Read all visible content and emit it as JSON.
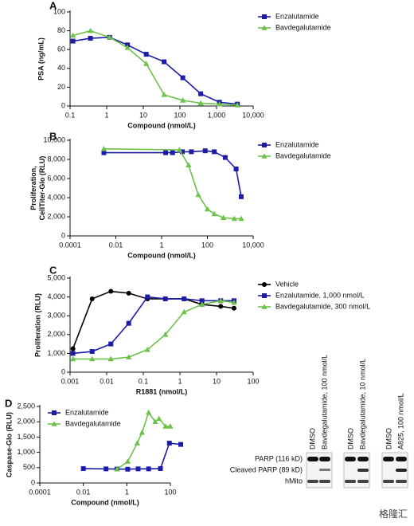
{
  "chart_data": [
    {
      "type": "line",
      "panel_label": "A",
      "xlabel": "Compound (nmol/L)",
      "ylabel": [
        "PSA (ng/mL)"
      ],
      "xscale": "log",
      "xlim": [
        0.1,
        10000
      ],
      "xticks": [
        0.1,
        1,
        10,
        100,
        {
          "value": 1000,
          "label": "1,000"
        },
        {
          "value": 10000,
          "label": "10,000"
        }
      ],
      "ylim": [
        0,
        100
      ],
      "yticks": [
        0,
        20,
        40,
        60,
        80,
        100
      ],
      "legend": "upper right",
      "series": [
        {
          "name": "Enzalutamide",
          "color": "#1c1ca8",
          "marker": "square",
          "x": [
            0.12,
            0.36,
            1.2,
            3.7,
            12,
            37,
            120,
            370,
            1200,
            3700
          ],
          "values": [
            69,
            72,
            73,
            65,
            55,
            47,
            30,
            13,
            4,
            2
          ]
        },
        {
          "name": "Bavdegalutamide",
          "color": "#6cc24a",
          "marker": "triangle",
          "x": [
            0.12,
            0.36,
            1.2,
            3.7,
            12,
            37,
            120,
            370,
            1200,
            3700
          ],
          "values": [
            75,
            80,
            73,
            62,
            45,
            12,
            6,
            3,
            2,
            1
          ]
        }
      ]
    },
    {
      "type": "line",
      "panel_label": "B",
      "xlabel": "Compound (nmol/L)",
      "ylabel": [
        "Proliferation,",
        "CellTiter-Glo (RLU)"
      ],
      "xscale": "log",
      "xlim": [
        0.0001,
        10000
      ],
      "xticks": [
        0.0001,
        0.01,
        1,
        100,
        {
          "value": 10000,
          "label": "10,000"
        }
      ],
      "ylim": [
        0,
        10000
      ],
      "yticks": [
        0,
        {
          "value": 2000,
          "label": "2,000"
        },
        {
          "value": 4000,
          "label": "4,000"
        },
        {
          "value": 6000,
          "label": "6,000"
        },
        {
          "value": 8000,
          "label": "8,000"
        },
        {
          "value": 10000,
          "label": "10,000"
        }
      ],
      "legend": "upper right",
      "series": [
        {
          "name": "Enzalutamide",
          "color": "#1c1ca8",
          "marker": "square",
          "x": [
            0.003,
            1.5,
            3,
            8,
            20,
            80,
            200,
            600,
            1800,
            3000
          ],
          "values": [
            8700,
            8700,
            8700,
            8800,
            8800,
            8900,
            8800,
            8200,
            7000,
            4100
          ]
        },
        {
          "name": "Bavdegalutamide",
          "color": "#6cc24a",
          "marker": "triangle",
          "x": [
            0.003,
            6,
            15,
            40,
            100,
            200,
            500,
            1500,
            3000
          ],
          "values": [
            9100,
            9000,
            7400,
            4300,
            2800,
            2300,
            1900,
            1800,
            1800
          ]
        }
      ]
    },
    {
      "type": "line",
      "panel_label": "C",
      "xlabel": "R1881 (nmol/L)",
      "ylabel": [
        "Proliferation (RLU)"
      ],
      "xscale": "log",
      "xlim": [
        0.001,
        100
      ],
      "xticks": [
        0.001,
        0.01,
        0.1,
        1,
        10,
        100
      ],
      "ylim": [
        0,
        5000
      ],
      "yticks": [
        0,
        {
          "value": 1000,
          "label": "1,000"
        },
        {
          "value": 2000,
          "label": "2,000"
        },
        {
          "value": 3000,
          "label": "3,000"
        },
        {
          "value": 4000,
          "label": "4,000"
        },
        {
          "value": 5000,
          "label": "5,000"
        }
      ],
      "legend": "right",
      "series": [
        {
          "name": "Vehicle",
          "color": "#000000",
          "marker": "circle",
          "x": [
            0.0012,
            0.004,
            0.013,
            0.04,
            0.13,
            0.4,
            1.3,
            4,
            13,
            30
          ],
          "values": [
            1250,
            3900,
            4300,
            4200,
            3900,
            3900,
            3900,
            3600,
            3500,
            3400
          ]
        },
        {
          "name": "Enzalutamide, 1,000 nmol/L",
          "color": "#1c1ca8",
          "marker": "square",
          "x": [
            0.0012,
            0.004,
            0.013,
            0.04,
            0.13,
            0.4,
            1.3,
            4,
            13,
            30
          ],
          "values": [
            1000,
            1100,
            1500,
            2600,
            4000,
            3900,
            3900,
            3800,
            3800,
            3800
          ]
        },
        {
          "name": "Bavdegalutamide, 300 nmol/L",
          "color": "#6cc24a",
          "marker": "triangle",
          "x": [
            0.0012,
            0.004,
            0.013,
            0.04,
            0.13,
            0.4,
            1.3,
            4,
            13,
            30
          ],
          "values": [
            700,
            700,
            700,
            800,
            1200,
            2000,
            3200,
            3600,
            3800,
            3700
          ]
        }
      ]
    },
    {
      "type": "line",
      "panel_label": "D",
      "xlabel": "Compound (nmol/L)",
      "ylabel": [
        "Caspase-Glo (RLU)"
      ],
      "xscale": "log",
      "xlim": [
        0.0001,
        100
      ],
      "xticks": [
        0.0001,
        0.01,
        1,
        100
      ],
      "ylim": [
        0,
        2500
      ],
      "yticks": [
        0,
        500,
        {
          "value": 1000,
          "label": "1,000"
        },
        {
          "value": 1500,
          "label": "1,500"
        },
        {
          "value": 2000,
          "label": "2,000"
        },
        {
          "value": 2500,
          "label": "2,500"
        }
      ],
      "legend": "upper left",
      "series": [
        {
          "name": "Enzalutamide",
          "color": "#1c1ca8",
          "marker": "square",
          "x": [
            0.01,
            0.11,
            0.35,
            1.1,
            3.3,
            10,
            35,
            90,
            300
          ],
          "values": [
            470,
            460,
            455,
            450,
            460,
            460,
            470,
            1300,
            1260
          ]
        },
        {
          "name": "Bavdegalutamide",
          "color": "#6cc24a",
          "marker": "triangle",
          "x": [
            0.35,
            1.1,
            3,
            5,
            10,
            20,
            30,
            60,
            100
          ],
          "values": [
            450,
            700,
            1300,
            1650,
            2300,
            2000,
            2100,
            1850,
            1850
          ]
        }
      ]
    }
  ],
  "blot": {
    "lanes": [
      "DMSO",
      "Bavdegalutamide, 100 nmol/L",
      "DMSO",
      "Bavdegalutamide, 10 nmol/L",
      "DMSO",
      "A825, 100 nmol/L"
    ],
    "rows": [
      "PARP (116 kD)",
      "Cleaved PARP (89 kD)",
      "hMito"
    ],
    "watermark": "格隆汇"
  }
}
